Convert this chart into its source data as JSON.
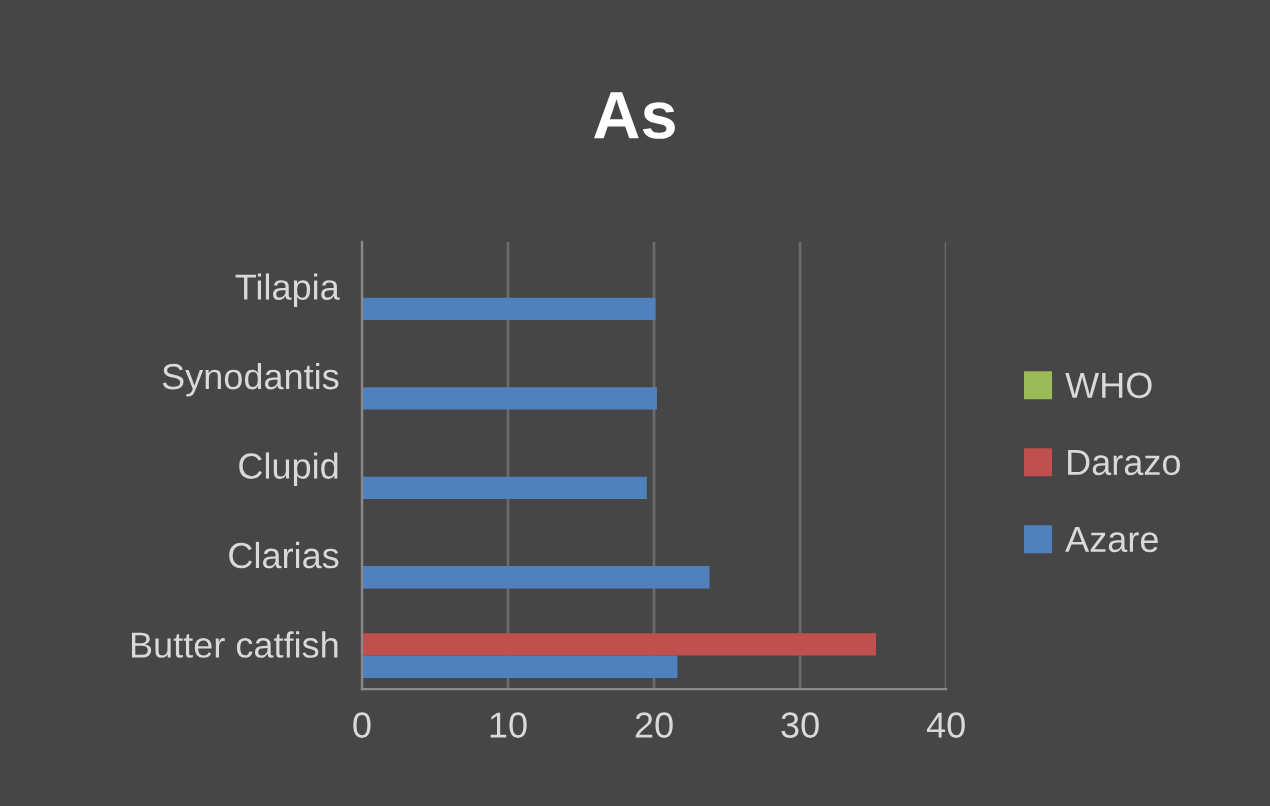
{
  "chart_data": {
    "type": "bar",
    "orientation": "horizontal",
    "title": "As",
    "categories": [
      "Tilapia",
      "Synodantis",
      "Clupid",
      "Clarias",
      "Butter catfish"
    ],
    "series": [
      {
        "name": "Azare",
        "color": "#4f81bd",
        "values": [
          20.1,
          20.2,
          19.5,
          23.8,
          21.6
        ]
      },
      {
        "name": "Darazo",
        "color": "#c0504d",
        "values": [
          null,
          null,
          null,
          null,
          35.2
        ]
      },
      {
        "name": "WHO",
        "color": "#9bbb59",
        "values": [
          null,
          null,
          null,
          null,
          null
        ]
      }
    ],
    "xlim": [
      0,
      40
    ],
    "xticks": [
      0,
      10,
      20,
      30,
      40
    ],
    "grid": "x",
    "legend": "right"
  }
}
